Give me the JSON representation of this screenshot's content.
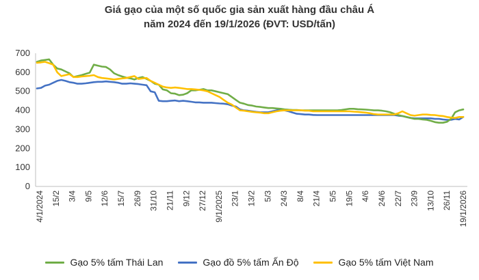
{
  "chart_data": {
    "type": "line",
    "title_line1": "Giá gạo của một số quốc gia sản xuất hàng đầu châu Á",
    "title_line2": "năm 2024 đến 19/1/2026 (ĐVT: USD/tấn)",
    "ylim": [
      0,
      700
    ],
    "y_ticks": [
      "0",
      "100",
      "200",
      "300",
      "400",
      "500",
      "600",
      "700"
    ],
    "x_tick_labels": [
      "4/1/2024",
      "15/2",
      "3/4",
      "9/5",
      "12/6",
      "15/7",
      "26/9",
      "31/10",
      "21/11",
      "9/12",
      "27/12",
      "9/1/2025",
      "23/1",
      "13/2",
      "5/3",
      "24/3",
      "8/4",
      "21/4",
      "5/5",
      "19/5",
      "4/6",
      "24/6",
      "22/7",
      "23/9",
      "13/10",
      "26/11",
      "19/1/2026"
    ],
    "grid": "none",
    "legend_position": "bottom",
    "series": [
      {
        "name": "Gạo 5% tấm Thái Lan",
        "color": "#70ad47",
        "values": [
          655,
          662,
          665,
          668,
          640,
          620,
          615,
          605,
          595,
          575,
          580,
          585,
          592,
          598,
          640,
          635,
          630,
          628,
          615,
          595,
          585,
          578,
          572,
          568,
          562,
          570,
          575,
          565,
          555,
          540,
          535,
          510,
          505,
          490,
          488,
          480,
          482,
          490,
          505,
          505,
          508,
          512,
          505,
          505,
          500,
          495,
          490,
          485,
          470,
          455,
          440,
          435,
          428,
          425,
          420,
          418,
          415,
          412,
          412,
          410,
          408,
          405,
          403,
          402,
          402,
          400,
          400,
          400,
          400,
          400,
          400,
          400,
          400,
          400,
          400,
          402,
          405,
          408,
          408,
          406,
          405,
          404,
          402,
          400,
          400,
          398,
          395,
          390,
          382,
          375,
          370,
          365,
          360,
          355,
          355,
          352,
          350,
          345,
          338,
          335,
          335,
          340,
          355,
          390,
          400,
          405
        ]
      },
      {
        "name": "Gạo đồ 5% tấm Ấn Độ",
        "color": "#4472c4",
        "values": [
          515,
          518,
          530,
          535,
          545,
          555,
          560,
          555,
          548,
          545,
          540,
          540,
          542,
          545,
          548,
          550,
          550,
          552,
          550,
          548,
          545,
          540,
          540,
          542,
          540,
          538,
          535,
          532,
          500,
          495,
          450,
          448,
          448,
          450,
          452,
          448,
          450,
          448,
          445,
          442,
          442,
          440,
          440,
          440,
          438,
          436,
          435,
          432,
          425,
          420,
          405,
          400,
          398,
          395,
          392,
          390,
          390,
          390,
          395,
          400,
          405,
          400,
          395,
          388,
          382,
          380,
          378,
          378,
          376,
          375,
          375,
          375,
          375,
          375,
          375,
          375,
          375,
          375,
          375,
          375,
          375,
          375,
          375,
          375,
          375,
          375,
          375,
          375,
          375,
          372,
          370,
          365,
          360,
          358,
          358,
          358,
          358,
          358,
          355,
          355,
          352,
          350,
          350,
          355,
          352,
          365
        ]
      },
      {
        "name": "Gạo 5% tấm Việt Nam",
        "color": "#ffc000",
        "values": [
          650,
          652,
          655,
          648,
          640,
          600,
          580,
          585,
          590,
          575,
          575,
          578,
          580,
          582,
          585,
          575,
          570,
          568,
          565,
          562,
          565,
          568,
          570,
          575,
          580,
          565,
          568,
          570,
          555,
          545,
          535,
          525,
          520,
          518,
          520,
          518,
          515,
          512,
          512,
          510,
          508,
          505,
          500,
          490,
          480,
          470,
          455,
          440,
          430,
          415,
          400,
          398,
          395,
          392,
          390,
          388,
          385,
          385,
          390,
          395,
          398,
          400,
          400,
          400,
          400,
          400,
          398,
          398,
          395,
          395,
          395,
          395,
          395,
          395,
          395,
          395,
          395,
          395,
          393,
          392,
          390,
          388,
          385,
          380,
          378,
          378,
          378,
          378,
          378,
          385,
          395,
          385,
          375,
          372,
          375,
          378,
          378,
          376,
          375,
          372,
          370,
          365,
          362,
          360,
          365,
          365
        ]
      }
    ]
  }
}
